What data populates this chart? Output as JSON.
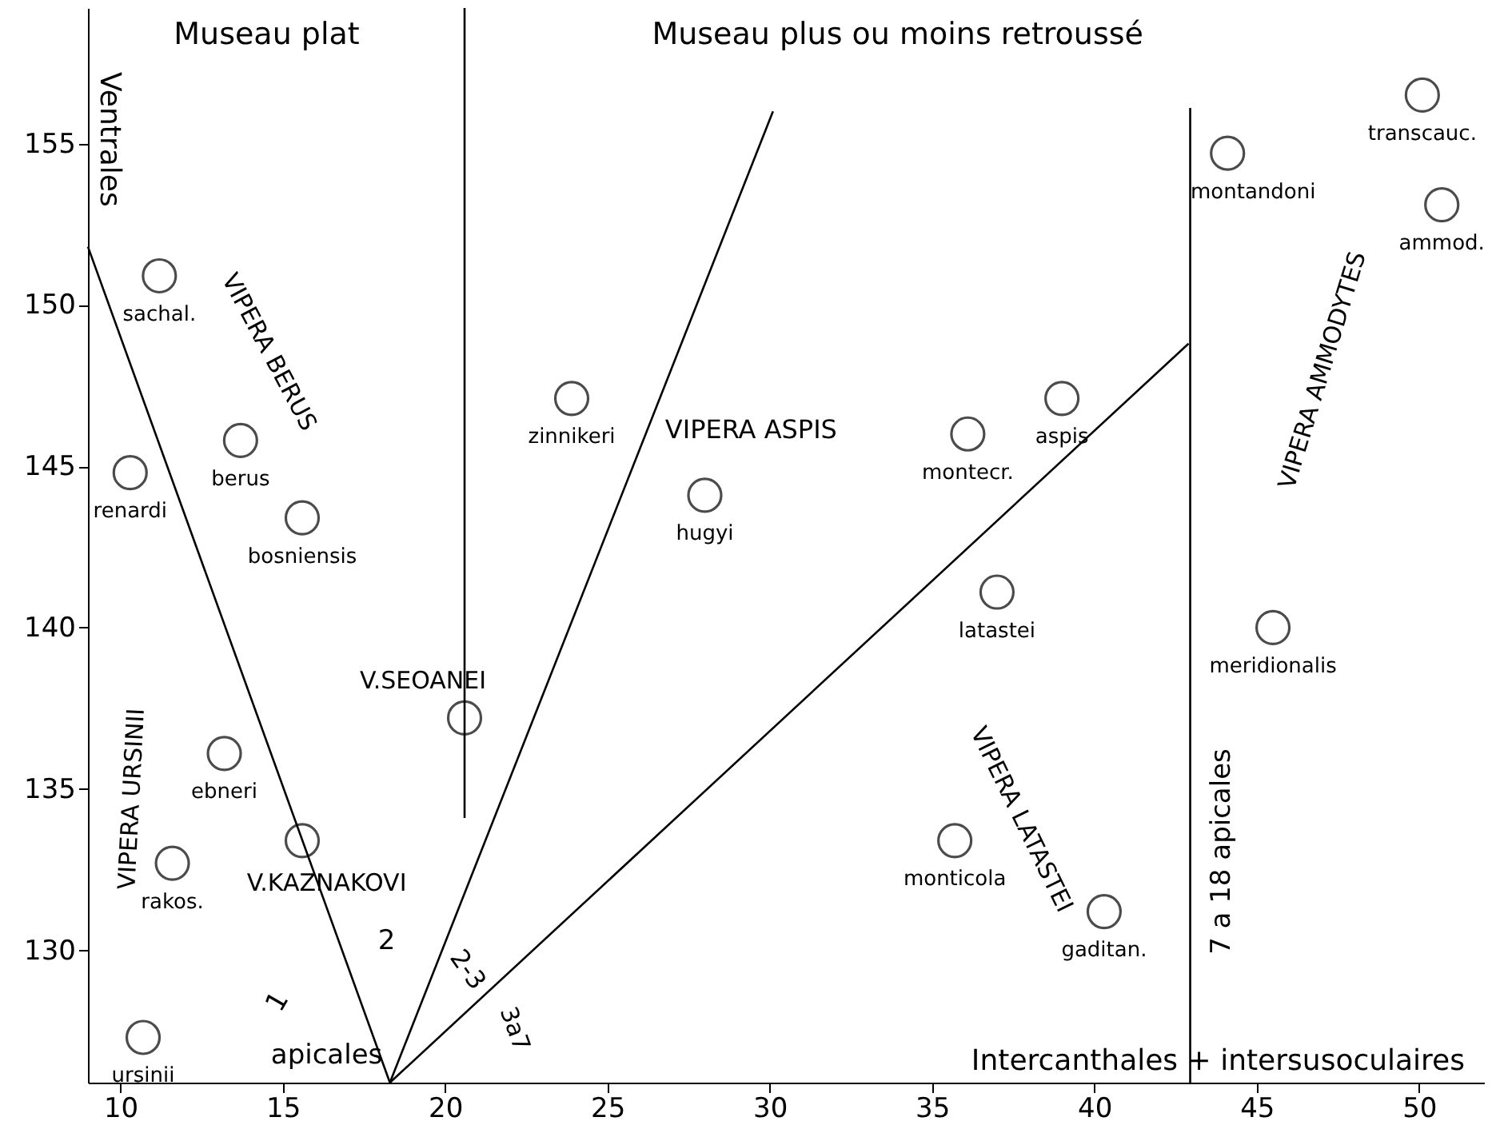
{
  "chart_data": {
    "type": "scatter",
    "xlabel": "Intercanthales + intersusoculaires",
    "ylabel": "Ventrales",
    "xlim": [
      9.0,
      52.0
    ],
    "ylim": [
      125.9,
      159.2
    ],
    "xticks": [
      10,
      15,
      20,
      25,
      30,
      35,
      40,
      45,
      50
    ],
    "yticks": [
      130,
      135,
      140,
      145,
      150,
      155
    ],
    "grid": false,
    "series": [
      {
        "marker": "circle",
        "color": "#000000",
        "x": [
          11.2,
          13.7,
          10.3,
          15.6,
          13.2,
          15.6,
          11.6,
          10.7,
          20.6,
          23.9,
          28.0,
          36.1,
          35.7,
          39.0,
          37.0,
          44.1,
          50.1,
          50.7,
          45.5,
          40.3
        ],
        "values": [
          150.9,
          145.8,
          144.8,
          143.4,
          136.1,
          133.4,
          132.7,
          127.3,
          137.2,
          147.1,
          144.1,
          146.0,
          133.4,
          147.1,
          141.1,
          154.7,
          156.5,
          153.1,
          140.0,
          131.2
        ],
        "value_labels": [
          "sachal.",
          "berus",
          "renardi",
          "bosniensis",
          "ebneri",
          null,
          "rakos.",
          "ursinii",
          null,
          "zinnikeri",
          "hugyi",
          "montecr.",
          "monticola",
          "aspis",
          "latastei",
          "montandoni",
          "transcauc.",
          "ammod.",
          "meridionalis",
          "gaditan."
        ]
      },
      {
        "type": "line",
        "color": "#000000",
        "x": [
          9.0,
          18.3
        ],
        "values": [
          151.8,
          125.9
        ]
      },
      {
        "type": "line",
        "color": "#000000",
        "x": [
          18.3,
          30.1
        ],
        "values": [
          125.9,
          156.0
        ]
      },
      {
        "type": "line",
        "color": "#000000",
        "x": [
          18.3,
          42.9
        ],
        "values": [
          125.9,
          148.8
        ]
      },
      {
        "type": "line",
        "color": "#000000",
        "x": [
          20.6,
          20.6
        ],
        "values": [
          159.2,
          134.1
        ]
      },
      {
        "type": "line",
        "color": "#000000",
        "x": [
          42.95,
          42.95
        ],
        "values": [
          156.1,
          125.9
        ]
      }
    ],
    "annotations": [
      "Museau plat",
      "Museau plus ou moins retroussé",
      "VIPERA BERUS",
      "VIPERA ASPIS",
      "V.SEOANEI",
      "V.KAZNAKOVI",
      "VIPERA URSINII",
      "VIPERA LATASTEI",
      "VIPERA AMMODYTES",
      "1",
      "2",
      "2-3",
      "3a7",
      "apicales",
      "7 a 18 apicales"
    ]
  }
}
